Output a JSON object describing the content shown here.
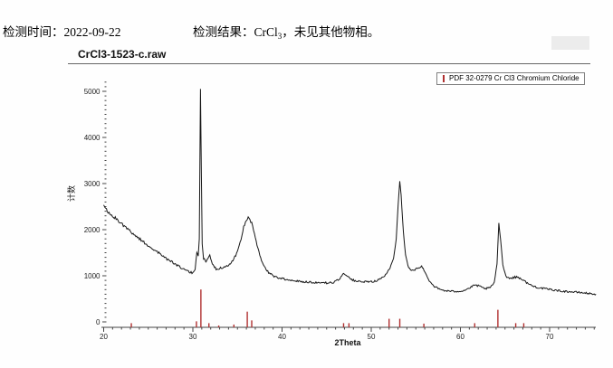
{
  "header": {
    "test_time_label": "检测时间：",
    "test_time_value": "2022-09-22",
    "result_label": "检测结果：",
    "result_formula": "CrCl",
    "result_formula_sub": "3",
    "result_tail": "，未见其他物相。"
  },
  "chart": {
    "title": "CrCl3-1523-c.raw",
    "legend_label": "PDF 32-0279 Cr Cl3 Chromium Chloride",
    "ylabel": "计数",
    "xlabel": "2Theta",
    "colors": {
      "curve": "#161616",
      "reference_marker": "#b03030",
      "axis": "#444444",
      "tick_text": "#222222"
    }
  },
  "chart_data": {
    "type": "line",
    "title": "CrCl3-1523-c.raw",
    "xlabel": "2Theta",
    "ylabel": "计数",
    "xlim": [
      20,
      75.3
    ],
    "ylim": [
      0,
      5300
    ],
    "x_major_ticks": [
      20,
      30,
      40,
      50,
      60,
      70
    ],
    "y_major_ticks": [
      0,
      1000,
      2000,
      3000,
      4000,
      5000
    ],
    "grid": false,
    "legend_position": "top-right",
    "series": [
      {
        "name": "CrCl3-1523-c.raw",
        "points": [
          [
            20,
            2560
          ],
          [
            20.15,
            2470
          ],
          [
            20.4,
            2400
          ],
          [
            20.8,
            2320
          ],
          [
            21.2,
            2260
          ],
          [
            21.7,
            2190
          ],
          [
            22.2,
            2100
          ],
          [
            22.7,
            2010
          ],
          [
            23.2,
            1930
          ],
          [
            23.7,
            1850
          ],
          [
            24.2,
            1770
          ],
          [
            24.7,
            1700
          ],
          [
            25.2,
            1630
          ],
          [
            25.7,
            1560
          ],
          [
            26.2,
            1490
          ],
          [
            26.7,
            1420
          ],
          [
            27.2,
            1350
          ],
          [
            27.7,
            1290
          ],
          [
            28.2,
            1230
          ],
          [
            28.7,
            1170
          ],
          [
            29.2,
            1120
          ],
          [
            29.6,
            1080
          ],
          [
            30.0,
            1060
          ],
          [
            30.25,
            1140
          ],
          [
            30.45,
            1520
          ],
          [
            30.6,
            1420
          ],
          [
            30.72,
            1800
          ],
          [
            30.85,
            5050
          ],
          [
            30.95,
            3200
          ],
          [
            31.05,
            1700
          ],
          [
            31.2,
            1380
          ],
          [
            31.45,
            1310
          ],
          [
            31.7,
            1390
          ],
          [
            31.9,
            1440
          ],
          [
            32.1,
            1310
          ],
          [
            32.35,
            1200
          ],
          [
            32.6,
            1150
          ],
          [
            33.0,
            1160
          ],
          [
            33.5,
            1190
          ],
          [
            34.0,
            1240
          ],
          [
            34.5,
            1330
          ],
          [
            35.0,
            1520
          ],
          [
            35.4,
            1790
          ],
          [
            35.7,
            2060
          ],
          [
            36.0,
            2220
          ],
          [
            36.3,
            2260
          ],
          [
            36.6,
            2140
          ],
          [
            36.9,
            1910
          ],
          [
            37.2,
            1650
          ],
          [
            37.6,
            1390
          ],
          [
            38.0,
            1200
          ],
          [
            38.5,
            1070
          ],
          [
            39.0,
            1000
          ],
          [
            39.5,
            960
          ],
          [
            40.0,
            940
          ],
          [
            41,
            905
          ],
          [
            42,
            880
          ],
          [
            43,
            865
          ],
          [
            44,
            850
          ],
          [
            45,
            845
          ],
          [
            45.8,
            855
          ],
          [
            46.4,
            925
          ],
          [
            46.9,
            1055
          ],
          [
            47.3,
            1005
          ],
          [
            47.8,
            915
          ],
          [
            48.5,
            875
          ],
          [
            49.5,
            865
          ],
          [
            50.5,
            885
          ],
          [
            51.2,
            950
          ],
          [
            51.7,
            1040
          ],
          [
            52.1,
            1160
          ],
          [
            52.5,
            1380
          ],
          [
            52.8,
            1800
          ],
          [
            53.0,
            2500
          ],
          [
            53.2,
            3050
          ],
          [
            53.35,
            2750
          ],
          [
            53.6,
            1950
          ],
          [
            53.85,
            1450
          ],
          [
            54.2,
            1160
          ],
          [
            54.7,
            1105
          ],
          [
            55.2,
            1165
          ],
          [
            55.65,
            1205
          ],
          [
            56.0,
            1090
          ],
          [
            56.5,
            900
          ],
          [
            57.0,
            780
          ],
          [
            57.6,
            710
          ],
          [
            58.3,
            675
          ],
          [
            59.2,
            660
          ],
          [
            60.2,
            670
          ],
          [
            61.0,
            730
          ],
          [
            61.6,
            800
          ],
          [
            62.1,
            775
          ],
          [
            62.7,
            720
          ],
          [
            63.3,
            735
          ],
          [
            63.8,
            855
          ],
          [
            64.1,
            1250
          ],
          [
            64.3,
            2150
          ],
          [
            64.5,
            1800
          ],
          [
            64.75,
            1250
          ],
          [
            65.1,
            990
          ],
          [
            65.5,
            945
          ],
          [
            66.0,
            965
          ],
          [
            66.4,
            975
          ],
          [
            66.9,
            925
          ],
          [
            67.4,
            855
          ],
          [
            68.0,
            785
          ],
          [
            68.8,
            740
          ],
          [
            69.6,
            715
          ],
          [
            70.5,
            690
          ],
          [
            71.5,
            665
          ],
          [
            72.5,
            650
          ],
          [
            73.5,
            635
          ],
          [
            74.5,
            615
          ],
          [
            75.2,
            600
          ]
        ]
      }
    ],
    "reference_markers": {
      "name": "PDF 32-0279 Cr Cl3 Chromium Chloride",
      "peaks": [
        [
          23.1,
          90
        ],
        [
          30.4,
          130
        ],
        [
          30.9,
          820
        ],
        [
          31.8,
          90
        ],
        [
          32.9,
          40
        ],
        [
          34.6,
          60
        ],
        [
          36.1,
          340
        ],
        [
          36.6,
          150
        ],
        [
          46.9,
          90
        ],
        [
          47.5,
          90
        ],
        [
          52.0,
          185
        ],
        [
          53.2,
          185
        ],
        [
          55.9,
          80
        ],
        [
          61.6,
          90
        ],
        [
          64.2,
          380
        ],
        [
          66.2,
          90
        ],
        [
          67.1,
          90
        ]
      ]
    }
  }
}
